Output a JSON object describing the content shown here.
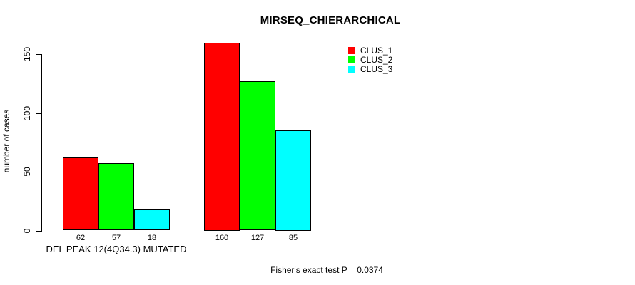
{
  "page": {
    "background": "#ffffff",
    "text_color": "#000000"
  },
  "chart_data": {
    "type": "bar",
    "title": "MIRSEQ_CHIERARCHICAL",
    "xlabel": "DEL PEAK 12(4Q34.3) MUTATED",
    "ylabel": "number of cases",
    "ylim": [
      0,
      150
    ],
    "yticks": [
      0,
      50,
      100,
      150
    ],
    "grid": false,
    "bar_borders": true,
    "legend_position": "top-right",
    "categories": [
      "DEL PEAK 12(4Q34.3) MUTATED",
      ""
    ],
    "series": [
      {
        "name": "CLUS_1",
        "color": "#ff0000",
        "values": [
          62,
          160
        ]
      },
      {
        "name": "CLUS_2",
        "color": "#00ff00",
        "values": [
          57,
          127
        ]
      },
      {
        "name": "CLUS_3",
        "color": "#00ffff",
        "values": [
          18,
          85
        ]
      }
    ],
    "value_labels": [
      [
        62,
        57,
        18
      ],
      [
        160,
        127,
        85
      ]
    ],
    "annotation": "Fisher's exact test P = 0.0374"
  }
}
